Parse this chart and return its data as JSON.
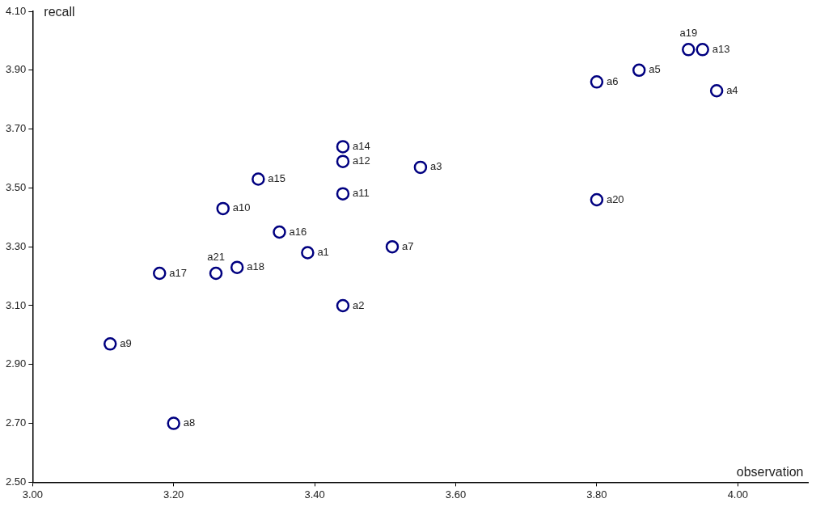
{
  "chart_data": {
    "type": "scatter",
    "xlabel": "observation",
    "ylabel": "recall",
    "xlim": [
      3.0,
      4.1
    ],
    "ylim": [
      2.5,
      4.1
    ],
    "xticks": [
      {
        "value": 3.0,
        "label": "3.00"
      },
      {
        "value": 3.2,
        "label": "3.20"
      },
      {
        "value": 3.4,
        "label": "3.40"
      },
      {
        "value": 3.6,
        "label": "3.60"
      },
      {
        "value": 3.8,
        "label": "3.80"
      },
      {
        "value": 4.0,
        "label": "4.00"
      }
    ],
    "yticks": [
      {
        "value": 2.5,
        "label": "2.50"
      },
      {
        "value": 2.7,
        "label": "2.70"
      },
      {
        "value": 2.9,
        "label": "2.90"
      },
      {
        "value": 3.1,
        "label": "3.10"
      },
      {
        "value": 3.3,
        "label": "3.30"
      },
      {
        "value": 3.5,
        "label": "3.50"
      },
      {
        "value": 3.7,
        "label": "3.70"
      },
      {
        "value": 3.9,
        "label": "3.90"
      },
      {
        "value": 4.1,
        "label": "4.10"
      }
    ],
    "marker": "circle",
    "legend": false,
    "series": [
      {
        "name": "a1",
        "color": "#000080",
        "x": [
          3.39
        ],
        "values": [
          3.28
        ]
      },
      {
        "name": "a2",
        "color": "#000080",
        "x": [
          3.44
        ],
        "values": [
          3.1
        ]
      },
      {
        "name": "a3",
        "color": "#000080",
        "x": [
          3.55
        ],
        "values": [
          3.57
        ]
      },
      {
        "name": "a4",
        "color": "#000080",
        "x": [
          3.97
        ],
        "values": [
          3.83
        ]
      },
      {
        "name": "a5",
        "color": "#000080",
        "x": [
          3.86
        ],
        "values": [
          3.9
        ]
      },
      {
        "name": "a6",
        "color": "#000080",
        "x": [
          3.8
        ],
        "values": [
          3.86
        ]
      },
      {
        "name": "a7",
        "color": "#000080",
        "x": [
          3.51
        ],
        "values": [
          3.3
        ]
      },
      {
        "name": "a8",
        "color": "#000080",
        "x": [
          3.2
        ],
        "values": [
          2.7
        ]
      },
      {
        "name": "a9",
        "color": "#000080",
        "x": [
          3.11
        ],
        "values": [
          2.97
        ]
      },
      {
        "name": "a10",
        "color": "#000080",
        "x": [
          3.27
        ],
        "values": [
          3.43
        ]
      },
      {
        "name": "a11",
        "color": "#000080",
        "x": [
          3.44
        ],
        "values": [
          3.48
        ]
      },
      {
        "name": "a12",
        "color": "#000080",
        "x": [
          3.44
        ],
        "values": [
          3.59
        ]
      },
      {
        "name": "a13",
        "color": "#000080",
        "x": [
          3.95
        ],
        "values": [
          3.97
        ]
      },
      {
        "name": "a14",
        "color": "#000080",
        "x": [
          3.44
        ],
        "values": [
          3.64
        ]
      },
      {
        "name": "a15",
        "color": "#000080",
        "x": [
          3.32
        ],
        "values": [
          3.53
        ]
      },
      {
        "name": "a16",
        "color": "#000080",
        "x": [
          3.35
        ],
        "values": [
          3.35
        ]
      },
      {
        "name": "a17",
        "color": "#000080",
        "x": [
          3.18
        ],
        "values": [
          3.21
        ]
      },
      {
        "name": "a18",
        "color": "#000080",
        "x": [
          3.29
        ],
        "values": [
          3.23
        ]
      },
      {
        "name": "a19",
        "color": "#000080",
        "x": [
          3.93
        ],
        "values": [
          3.97
        ]
      },
      {
        "name": "a20",
        "color": "#000080",
        "x": [
          3.8
        ],
        "values": [
          3.46
        ]
      },
      {
        "name": "a21",
        "color": "#000080",
        "x": [
          3.26
        ],
        "values": [
          3.21
        ]
      }
    ]
  }
}
